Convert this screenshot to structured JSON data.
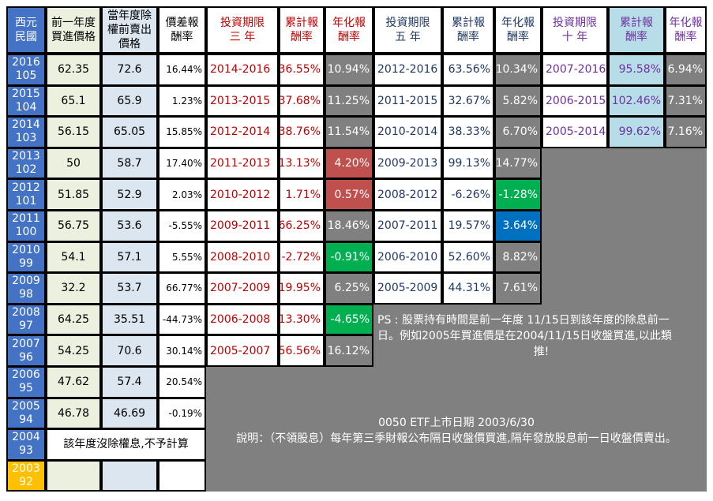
{
  "headers": {
    "year": "西元\n民國",
    "buy": "前一年度\n買進價格",
    "sell": "當年度除\n權前賣出\n價格",
    "diff": "價差報\n酬率",
    "p3": "投資期限\n三  年",
    "cum3": "累計報\n酬率",
    "ann3": "年化報\n酬率",
    "p5": "投資期限\n五  年",
    "cum5": "累計報\n酬率",
    "ann5": "年化報\n酬率",
    "p10": "投資期限\n十  年",
    "cum10": "累計報\n酬率",
    "ann10": "年化報\n酬率"
  },
  "rows": [
    {
      "ad": "2016",
      "roc": "105",
      "buy": "62.35",
      "sell": "72.6",
      "diff": "16.44%",
      "p3": "2014-2016",
      "cum3": "36.55%",
      "ann3": "10.94%",
      "ann3_color": "#808080",
      "p5": "2012-2016",
      "cum5": "63.56%",
      "ann5": "10.34%",
      "ann5_color": "#808080",
      "p10": "2007-2016",
      "cum10": "95.58%",
      "ann10": "6.94%"
    },
    {
      "ad": "2015",
      "roc": "104",
      "buy": "65.1",
      "sell": "65.9",
      "diff": "1.23%",
      "p3": "2013-2015",
      "cum3": "37.68%",
      "ann3": "11.25%",
      "ann3_color": "#808080",
      "p5": "2011-2015",
      "cum5": "32.67%",
      "ann5": "5.82%",
      "ann5_color": "#808080",
      "p10": "2006-2015",
      "cum10": "102.46%",
      "ann10": "7.31%"
    },
    {
      "ad": "2014",
      "roc": "103",
      "buy": "56.15",
      "sell": "65.05",
      "diff": "15.85%",
      "p3": "2012-2014",
      "cum3": "38.76%",
      "ann3": "11.54%",
      "ann3_color": "#808080",
      "p5": "2010-2014",
      "cum5": "38.33%",
      "ann5": "6.70%",
      "ann5_color": "#808080",
      "p10": "2005-2014",
      "cum10": "99.62%",
      "ann10": "7.16%"
    },
    {
      "ad": "2013",
      "roc": "102",
      "buy": "50",
      "sell": "58.7",
      "diff": "17.40%",
      "p3": "2011-2013",
      "cum3": "13.13%",
      "ann3": "4.20%",
      "ann3_color": "#c0504d",
      "p5": "2009-2013",
      "cum5": "99.13%",
      "ann5": "14.77%",
      "ann5_color": "#808080"
    },
    {
      "ad": "2012",
      "roc": "101",
      "buy": "51.85",
      "sell": "52.9",
      "diff": "2.03%",
      "p3": "2010-2012",
      "cum3": "1.71%",
      "ann3": "0.57%",
      "ann3_color": "#c0504d",
      "p5": "2008-2012",
      "cum5": "-6.26%",
      "ann5": "-1.28%",
      "ann5_color": "#00b050"
    },
    {
      "ad": "2011",
      "roc": "100",
      "buy": "56.75",
      "sell": "53.6",
      "diff": "-5.55%",
      "p3": "2009-2011",
      "cum3": "66.25%",
      "ann3": "18.46%",
      "ann3_color": "#808080",
      "p5": "2007-2011",
      "cum5": "19.57%",
      "ann5": "3.64%",
      "ann5_color": "#0070c0"
    },
    {
      "ad": "2010",
      "roc": "99",
      "buy": "54.1",
      "sell": "57.1",
      "diff": "5.55%",
      "p3": "2008-2010",
      "cum3": "-2.72%",
      "ann3": "-0.91%",
      "ann3_color": "#00b050",
      "p5": "2006-2010",
      "cum5": "52.60%",
      "ann5": "8.82%",
      "ann5_color": "#808080"
    },
    {
      "ad": "2009",
      "roc": "98",
      "buy": "32.2",
      "sell": "53.7",
      "diff": "66.77%",
      "p3": "2007-2009",
      "cum3": "19.95%",
      "ann3": "6.25%",
      "ann3_color": "#808080",
      "p5": "2005-2009",
      "cum5": "44.31%",
      "ann5": "7.61%",
      "ann5_color": "#808080"
    },
    {
      "ad": "2008",
      "roc": "97",
      "buy": "64.25",
      "sell": "35.51",
      "diff": "-44.73%",
      "p3": "2006-2008",
      "cum3": "-13.30%",
      "ann3": "-4.65%",
      "ann3_color": "#00b050"
    },
    {
      "ad": "2007",
      "roc": "96",
      "buy": "54.25",
      "sell": "70.6",
      "diff": "30.14%",
      "p3": "2005-2007",
      "cum3": "56.56%",
      "ann3": "16.12%",
      "ann3_color": "#808080"
    },
    {
      "ad": "2006",
      "roc": "95",
      "buy": "47.62",
      "sell": "57.4",
      "diff": "20.54%"
    },
    {
      "ad": "2005",
      "roc": "94",
      "buy": "46.78",
      "sell": "46.69",
      "diff": "-0.19%"
    },
    {
      "ad": "2004",
      "roc": "93",
      "no_rights_text": "該年度沒除權息,不予計算"
    },
    {
      "ad": "2003",
      "roc": "92"
    }
  ],
  "notes": {
    "ps_line1": "PS : 股票持有時間是前一年度 11/15日到該年度的除息前一",
    "ps_line2": "日。例如2005年買進價是在2004/11/15日收盤買進,以此類",
    "ps_line3": "推!",
    "etf_listing": "0050 ETF上市日期 2003/6/30",
    "explanation": "說明：（不領股息）每年第三季財報公布隔日收盤價買進,隔年發放股息前一日收盤價賣出。"
  },
  "colors": {
    "year_bg": "#4472c4",
    "year_2003_bg": "#ffc000",
    "buy_bg": "#ebf1de",
    "sell_bg": "#dce6f1",
    "p10_cum_bg": "#b7dee8",
    "red_text": "#c00000",
    "navy_text": "#1f3864",
    "purple_text": "#7030a0",
    "grey_bg": "#808080"
  }
}
